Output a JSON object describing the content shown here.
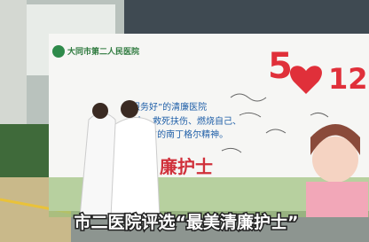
{
  "photo": {
    "banner": {
      "hospital_name": "大同市第二人民医院",
      "date_month": "5",
      "date_day": "12",
      "slogan": [
        "服务好”的清廉医院",
        "命、救死扶伤、燃烧自己、",
        "”的南丁格尔精神。"
      ],
      "title": "廉护士"
    }
  },
  "caption": "市二医院评选“最美清廉护士”"
}
